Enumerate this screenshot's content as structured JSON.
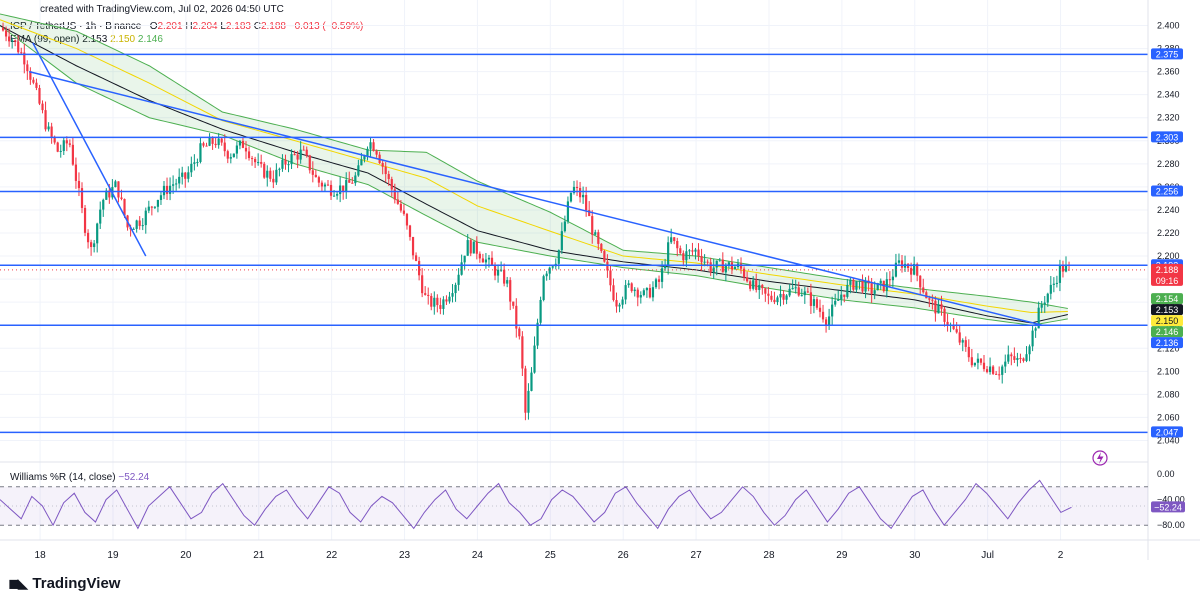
{
  "header": {
    "credit": "created with TradingView.com, Jul 02, 2026 04:50 UTC"
  },
  "legend": {
    "symbol": "ICP / TetherUS · 1h · Binance",
    "open_label": "O",
    "open": "2.201",
    "high_label": "H",
    "high": "2.204",
    "low_label": "L",
    "low": "2.183",
    "close_label": "C",
    "close": "2.188",
    "change": "−0.013 (−0.59%)",
    "ema_label": "EMA (99, open)",
    "ema_center": "2.153",
    "ema_mid": "2.150",
    "ema_low": "2.146"
  },
  "williams": {
    "label": "Williams %R (14, close)",
    "value": "−52.24",
    "axis_labels": [
      "0.00",
      "−40.00",
      "−80.00"
    ],
    "badge": "−52.24"
  },
  "brand": {
    "name": "TradingView"
  },
  "chart_data": {
    "type": "candlestick",
    "symbol": "ICP / TetherUS",
    "timeframe": "1h",
    "exchange": "Binance",
    "y_range": [
      2.03,
      2.41
    ],
    "y_ticks": [
      "2.400",
      "2.380",
      "2.360",
      "2.340",
      "2.320",
      "2.300",
      "2.280",
      "2.260",
      "2.240",
      "2.220",
      "2.200",
      "2.180",
      "2.160",
      "2.140",
      "2.120",
      "2.100",
      "2.080",
      "2.060",
      "2.040"
    ],
    "x_ticks": [
      "18",
      "19",
      "20",
      "21",
      "22",
      "23",
      "24",
      "25",
      "26",
      "27",
      "28",
      "29",
      "30",
      "Jul",
      "2"
    ],
    "x_tick_days": [
      18,
      19,
      20,
      21,
      22,
      23,
      24,
      25,
      26,
      27,
      28,
      29,
      30,
      31,
      32
    ],
    "x_range_days": [
      17.45,
      33.2
    ],
    "last_bar_day": 32.15,
    "horizontal_levels": [
      {
        "value": 2.375,
        "label": "2.375"
      },
      {
        "value": 2.303,
        "label": "2.303"
      },
      {
        "value": 2.256,
        "label": "2.256"
      },
      {
        "value": 2.192,
        "label": "2.192"
      },
      {
        "value": 2.14,
        "label": ""
      },
      {
        "value": 2.047,
        "label": "2.047"
      }
    ],
    "trendlines": [
      {
        "from": [
          17.9,
          2.385
        ],
        "to": [
          19.45,
          2.2
        ]
      },
      {
        "from": [
          17.85,
          2.36
        ],
        "to": [
          31.75,
          2.14
        ]
      }
    ],
    "price_badges": [
      {
        "value": 2.188,
        "label": "2.188",
        "sub": "09:16",
        "color": "#f23645"
      },
      {
        "value": 2.154,
        "label": "2.154",
        "color": "#4caf50"
      },
      {
        "value": 2.153,
        "label": "2.153",
        "color": "#131722"
      },
      {
        "value": 2.15,
        "label": "2.150",
        "color": "#ffeb3b"
      },
      {
        "value": 2.146,
        "label": "2.146",
        "color": "#4caf50"
      },
      {
        "value": 2.136,
        "label": "2.136",
        "color": "#2962ff"
      }
    ],
    "price_path": [
      [
        17.45,
        2.398
      ],
      [
        17.6,
        2.39
      ],
      [
        17.8,
        2.37
      ],
      [
        17.95,
        2.34
      ],
      [
        18.1,
        2.31
      ],
      [
        18.25,
        2.29
      ],
      [
        18.4,
        2.3
      ],
      [
        18.6,
        2.23
      ],
      [
        18.7,
        2.205
      ],
      [
        18.85,
        2.248
      ],
      [
        19.05,
        2.262
      ],
      [
        19.2,
        2.225
      ],
      [
        19.4,
        2.232
      ],
      [
        19.6,
        2.25
      ],
      [
        19.8,
        2.262
      ],
      [
        20.0,
        2.268
      ],
      [
        20.2,
        2.292
      ],
      [
        20.4,
        2.3
      ],
      [
        20.6,
        2.288
      ],
      [
        20.8,
        2.298
      ],
      [
        21.0,
        2.276
      ],
      [
        21.2,
        2.268
      ],
      [
        21.4,
        2.284
      ],
      [
        21.6,
        2.29
      ],
      [
        21.8,
        2.265
      ],
      [
        22.0,
        2.258
      ],
      [
        22.2,
        2.26
      ],
      [
        22.35,
        2.27
      ],
      [
        22.5,
        2.3
      ],
      [
        22.6,
        2.295
      ],
      [
        22.8,
        2.262
      ],
      [
        23.0,
        2.232
      ],
      [
        23.15,
        2.195
      ],
      [
        23.3,
        2.16
      ],
      [
        23.5,
        2.158
      ],
      [
        23.7,
        2.178
      ],
      [
        23.85,
        2.21
      ],
      [
        24.0,
        2.205
      ],
      [
        24.2,
        2.19
      ],
      [
        24.4,
        2.178
      ],
      [
        24.6,
        2.12
      ],
      [
        24.65,
        2.06
      ],
      [
        24.75,
        2.1
      ],
      [
        24.9,
        2.185
      ],
      [
        25.1,
        2.2
      ],
      [
        25.3,
        2.26
      ],
      [
        25.45,
        2.25
      ],
      [
        25.6,
        2.218
      ],
      [
        25.75,
        2.19
      ],
      [
        25.9,
        2.16
      ],
      [
        26.1,
        2.175
      ],
      [
        26.3,
        2.165
      ],
      [
        26.5,
        2.178
      ],
      [
        26.65,
        2.215
      ],
      [
        26.8,
        2.2
      ],
      [
        27.0,
        2.205
      ],
      [
        27.2,
        2.19
      ],
      [
        27.4,
        2.192
      ],
      [
        27.6,
        2.19
      ],
      [
        27.8,
        2.172
      ],
      [
        28.0,
        2.163
      ],
      [
        28.2,
        2.168
      ],
      [
        28.4,
        2.172
      ],
      [
        28.6,
        2.16
      ],
      [
        28.8,
        2.145
      ],
      [
        29.0,
        2.168
      ],
      [
        29.2,
        2.178
      ],
      [
        29.4,
        2.17
      ],
      [
        29.6,
        2.175
      ],
      [
        29.8,
        2.195
      ],
      [
        30.0,
        2.188
      ],
      [
        30.2,
        2.16
      ],
      [
        30.4,
        2.148
      ],
      [
        30.6,
        2.128
      ],
      [
        30.8,
        2.108
      ],
      [
        31.0,
        2.105
      ],
      [
        31.15,
        2.1
      ],
      [
        31.3,
        2.112
      ],
      [
        31.45,
        2.108
      ],
      [
        31.6,
        2.13
      ],
      [
        31.75,
        2.16
      ],
      [
        31.9,
        2.175
      ],
      [
        32.0,
        2.19
      ],
      [
        32.15,
        2.188
      ]
    ],
    "ema_center_path": [
      [
        17.45,
        2.4
      ],
      [
        18.5,
        2.365
      ],
      [
        19.5,
        2.335
      ],
      [
        20.5,
        2.31
      ],
      [
        21.5,
        2.29
      ],
      [
        22.5,
        2.272
      ],
      [
        23.3,
        2.245
      ],
      [
        24.0,
        2.222
      ],
      [
        25.0,
        2.205
      ],
      [
        26.0,
        2.195
      ],
      [
        27.0,
        2.188
      ],
      [
        28.0,
        2.178
      ],
      [
        29.0,
        2.17
      ],
      [
        30.0,
        2.162
      ],
      [
        31.0,
        2.148
      ],
      [
        31.6,
        2.142
      ],
      [
        32.15,
        2.15
      ]
    ],
    "ema_upper_path": [
      [
        17.45,
        2.41
      ],
      [
        18.5,
        2.395
      ],
      [
        19.5,
        2.365
      ],
      [
        20.5,
        2.325
      ],
      [
        21.5,
        2.31
      ],
      [
        22.5,
        2.292
      ],
      [
        23.3,
        2.29
      ],
      [
        24.0,
        2.265
      ],
      [
        25.0,
        2.238
      ],
      [
        26.0,
        2.205
      ],
      [
        27.0,
        2.2
      ],
      [
        28.0,
        2.19
      ],
      [
        29.0,
        2.18
      ],
      [
        30.0,
        2.172
      ],
      [
        31.0,
        2.165
      ],
      [
        31.6,
        2.16
      ],
      [
        32.15,
        2.154
      ]
    ],
    "ema_lower_path": [
      [
        17.45,
        2.4
      ],
      [
        18.5,
        2.35
      ],
      [
        19.5,
        2.32
      ],
      [
        20.5,
        2.305
      ],
      [
        21.5,
        2.28
      ],
      [
        22.5,
        2.262
      ],
      [
        23.3,
        2.235
      ],
      [
        24.0,
        2.212
      ],
      [
        25.0,
        2.2
      ],
      [
        26.0,
        2.19
      ],
      [
        27.0,
        2.183
      ],
      [
        28.0,
        2.172
      ],
      [
        29.0,
        2.162
      ],
      [
        30.0,
        2.155
      ],
      [
        31.0,
        2.145
      ],
      [
        31.6,
        2.14
      ],
      [
        32.15,
        2.146
      ]
    ],
    "williams_range": [
      -100,
      0
    ],
    "williams_levels": [
      -20,
      -80
    ],
    "williams_series": [
      -40,
      -55,
      -70,
      -35,
      -50,
      -80,
      -45,
      -30,
      -60,
      -75,
      -40,
      -25,
      -55,
      -85,
      -50,
      -35,
      -20,
      -45,
      -70,
      -60,
      -30,
      -15,
      -40,
      -65,
      -80,
      -55,
      -35,
      -25,
      -50,
      -70,
      -45,
      -20,
      -30,
      -60,
      -75,
      -50,
      -35,
      -45,
      -65,
      -85,
      -60,
      -40,
      -25,
      -55,
      -70,
      -50,
      -30,
      -15,
      -45,
      -60,
      -80,
      -70,
      -40,
      -25,
      -35,
      -55,
      -75,
      -60,
      -30,
      -20,
      -45,
      -65,
      -85,
      -55,
      -35,
      -25,
      -50,
      -70,
      -60,
      -40,
      -20,
      -35,
      -60,
      -80,
      -65,
      -40,
      -25,
      -50,
      -75,
      -55,
      -30,
      -20,
      -45,
      -70,
      -85,
      -60,
      -35,
      -25,
      -55,
      -80,
      -60,
      -40,
      -15,
      -30,
      -50,
      -70,
      -45,
      -25,
      -10,
      -35,
      -60,
      -52
    ]
  }
}
